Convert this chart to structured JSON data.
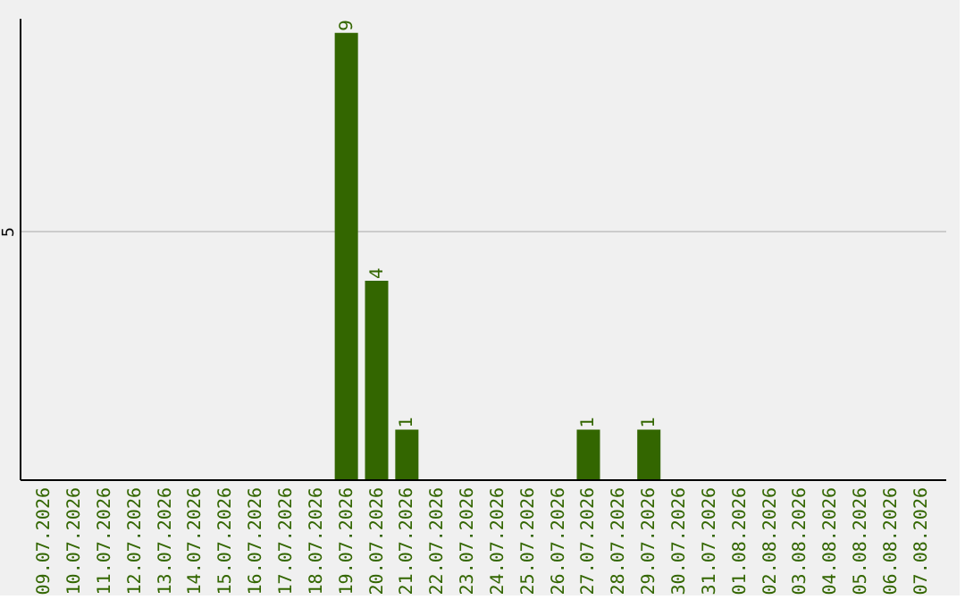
{
  "chart_data": {
    "type": "bar",
    "categories": [
      "09.07.2026",
      "10.07.2026",
      "11.07.2026",
      "12.07.2026",
      "13.07.2026",
      "14.07.2026",
      "15.07.2026",
      "16.07.2026",
      "17.07.2026",
      "18.07.2026",
      "19.07.2026",
      "20.07.2026",
      "21.07.2026",
      "22.07.2026",
      "23.07.2026",
      "24.07.2026",
      "25.07.2026",
      "26.07.2026",
      "27.07.2026",
      "28.07.2026",
      "29.07.2026",
      "30.07.2026",
      "31.07.2026",
      "01.08.2026",
      "02.08.2026",
      "03.08.2026",
      "04.08.2026",
      "05.08.2026",
      "06.08.2026",
      "07.08.2026"
    ],
    "values": [
      0,
      0,
      0,
      0,
      0,
      0,
      0,
      0,
      0,
      0,
      9,
      4,
      1,
      0,
      0,
      0,
      0,
      0,
      1,
      0,
      1,
      0,
      0,
      0,
      0,
      0,
      0,
      0,
      0,
      0
    ],
    "value_labels": [
      null,
      null,
      null,
      null,
      null,
      null,
      null,
      null,
      null,
      null,
      "9",
      "4",
      "1",
      null,
      null,
      null,
      null,
      null,
      "1",
      null,
      "1",
      null,
      null,
      null,
      null,
      null,
      null,
      null,
      null,
      null
    ],
    "color": "#336600",
    "ylim": [
      0,
      9.3
    ],
    "yticks": [
      5
    ],
    "grid": "y"
  }
}
